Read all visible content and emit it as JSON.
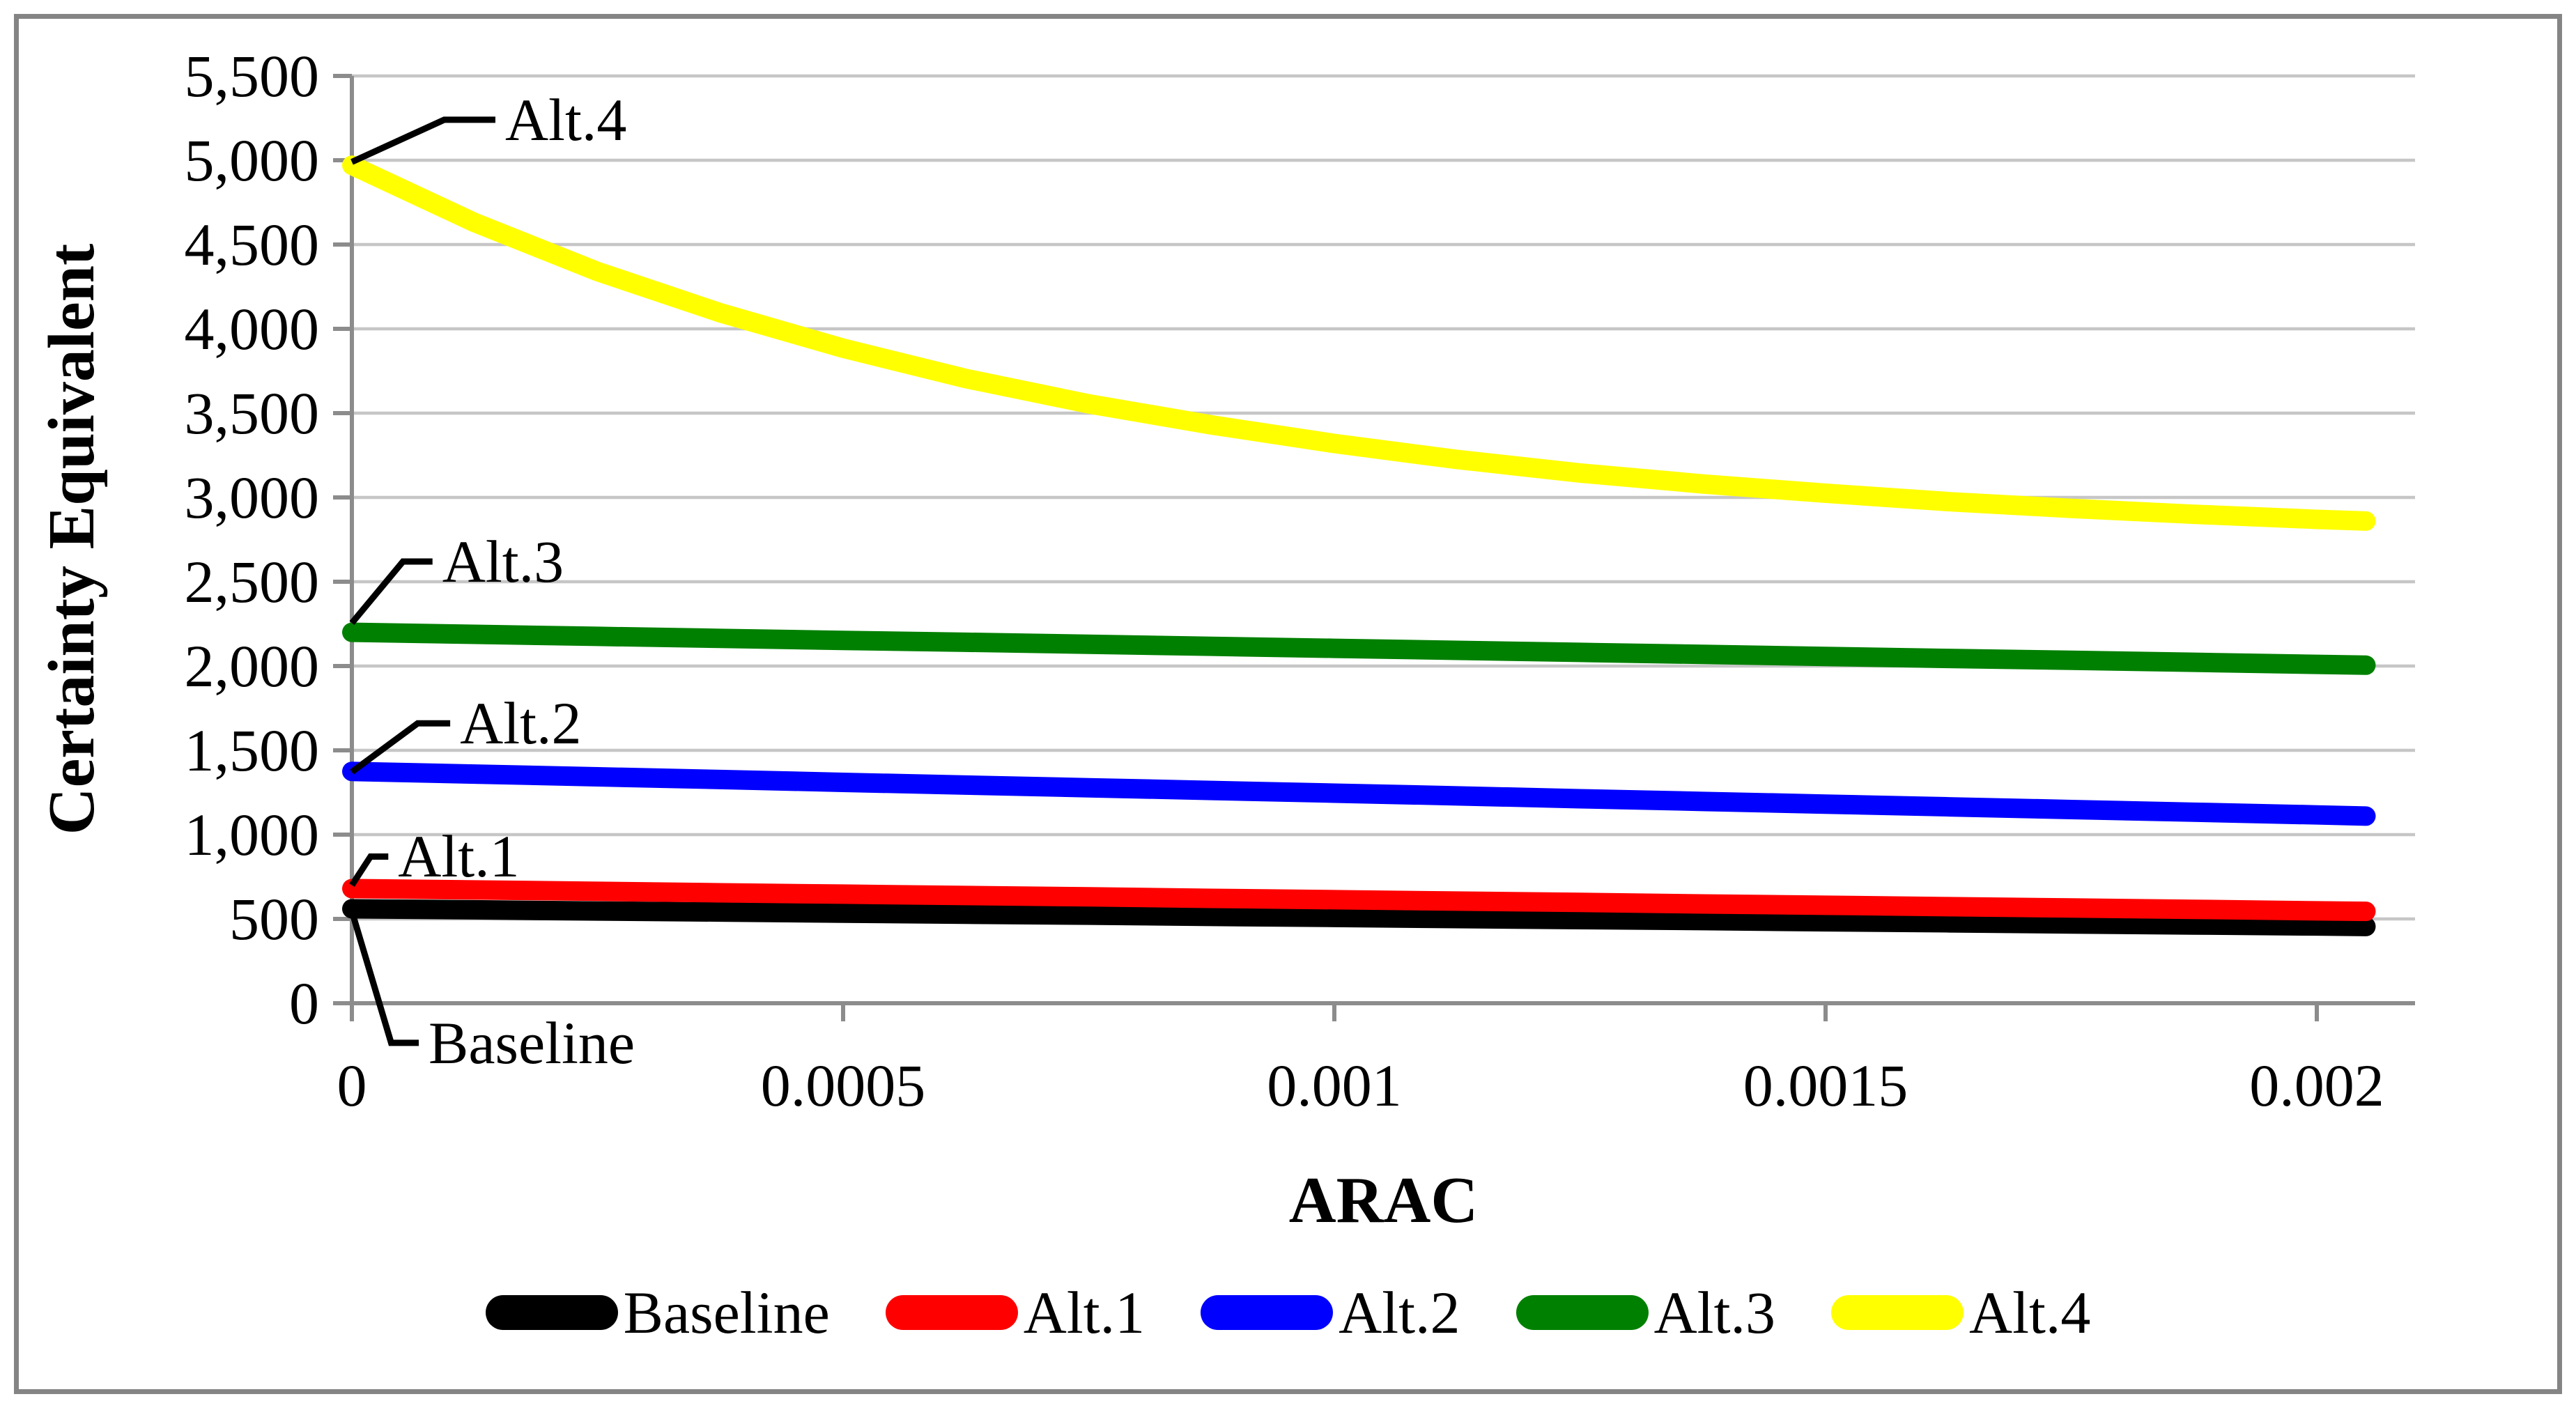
{
  "chart_data": {
    "type": "line",
    "title": "",
    "xlabel": "ARAC",
    "ylabel": "Certainty Equivalent",
    "xlim": [
      0,
      0.0021
    ],
    "ylim": [
      0,
      5500
    ],
    "grid": "horizontal-only",
    "legend_position": "bottom",
    "x_ticks": [
      {
        "value": 0,
        "label": "0"
      },
      {
        "value": 0.0005,
        "label": "0.0005"
      },
      {
        "value": 0.001,
        "label": "0.001"
      },
      {
        "value": 0.0015,
        "label": "0.0015"
      },
      {
        "value": 0.002,
        "label": "0.002"
      }
    ],
    "y_ticks": [
      {
        "value": 0,
        "label": "0"
      },
      {
        "value": 500,
        "label": "500"
      },
      {
        "value": 1000,
        "label": "1,000"
      },
      {
        "value": 1500,
        "label": "1,500"
      },
      {
        "value": 2000,
        "label": "2,000"
      },
      {
        "value": 2500,
        "label": "2,500"
      },
      {
        "value": 3000,
        "label": "3,000"
      },
      {
        "value": 3500,
        "label": "3,500"
      },
      {
        "value": 4000,
        "label": "4,000"
      },
      {
        "value": 4500,
        "label": "4,500"
      },
      {
        "value": 5000,
        "label": "5,000"
      },
      {
        "value": 5500,
        "label": "5,500"
      }
    ],
    "x": [
      0,
      0.000125,
      0.00025,
      0.000375,
      0.0005,
      0.000625,
      0.00075,
      0.000875,
      0.001,
      0.001125,
      0.00125,
      0.001375,
      0.0015,
      0.001625,
      0.00175,
      0.001875,
      0.002,
      0.00205
    ],
    "series": [
      {
        "name": "Baseline",
        "color": "#000000",
        "values": [
          560,
          554,
          547,
          541,
          534,
          528,
          522,
          515,
          509,
          502,
          496,
          490,
          483,
          477,
          470,
          464,
          458,
          455
        ]
      },
      {
        "name": "Alt.1",
        "color": "#FF0000",
        "values": [
          680,
          672,
          664,
          655,
          647,
          639,
          631,
          622,
          614,
          606,
          598,
          589,
          581,
          573,
          565,
          557,
          548,
          545
        ]
      },
      {
        "name": "Alt.2",
        "color": "#0000FF",
        "values": [
          1375,
          1359,
          1343,
          1327,
          1310,
          1294,
          1278,
          1262,
          1246,
          1230,
          1213,
          1197,
          1181,
          1165,
          1149,
          1133,
          1117,
          1110
        ]
      },
      {
        "name": "Alt.3",
        "color": "#008000",
        "values": [
          2200,
          2188,
          2176,
          2164,
          2152,
          2141,
          2129,
          2117,
          2105,
          2093,
          2081,
          2069,
          2057,
          2045,
          2034,
          2022,
          2010,
          2005
        ]
      },
      {
        "name": "Alt.4",
        "color": "#FFFF00",
        "values": [
          4970,
          4630,
          4340,
          4095,
          3885,
          3705,
          3555,
          3430,
          3320,
          3225,
          3145,
          3080,
          3025,
          2975,
          2935,
          2900,
          2870,
          2860
        ]
      }
    ],
    "annotations": [
      {
        "label": "Alt.4",
        "point": {
          "x": 0,
          "y": 4990
        },
        "elbow": {
          "x": 9.4e-05,
          "y": 5240
        },
        "text": {
          "x": 0.000156,
          "y": 5240
        }
      },
      {
        "label": "Alt.3",
        "point": {
          "x": 0,
          "y": 2255
        },
        "elbow": {
          "x": 5.2e-05,
          "y": 2620
        },
        "text": {
          "x": 9.2e-05,
          "y": 2620
        }
      },
      {
        "label": "Alt.2",
        "point": {
          "x": 0,
          "y": 1372
        },
        "elbow": {
          "x": 6.7e-05,
          "y": 1660
        },
        "text": {
          "x": 0.00011,
          "y": 1660
        }
      },
      {
        "label": "Alt.1",
        "point": {
          "x": 0,
          "y": 700
        },
        "elbow": {
          "x": 1.9e-05,
          "y": 870
        },
        "text": {
          "x": 4.7e-05,
          "y": 870
        }
      },
      {
        "label": "Baseline",
        "point": {
          "x": 0,
          "y": 545
        },
        "elbow": {
          "x": 4e-05,
          "y": -235
        },
        "text": {
          "x": 7.8e-05,
          "y": -235
        }
      }
    ],
    "colors": {
      "grid": "#C6C6C6",
      "axis": "#8C8C8C",
      "annotation_line": "#000000",
      "border": "#848484",
      "background": "#FFFFFF"
    }
  }
}
